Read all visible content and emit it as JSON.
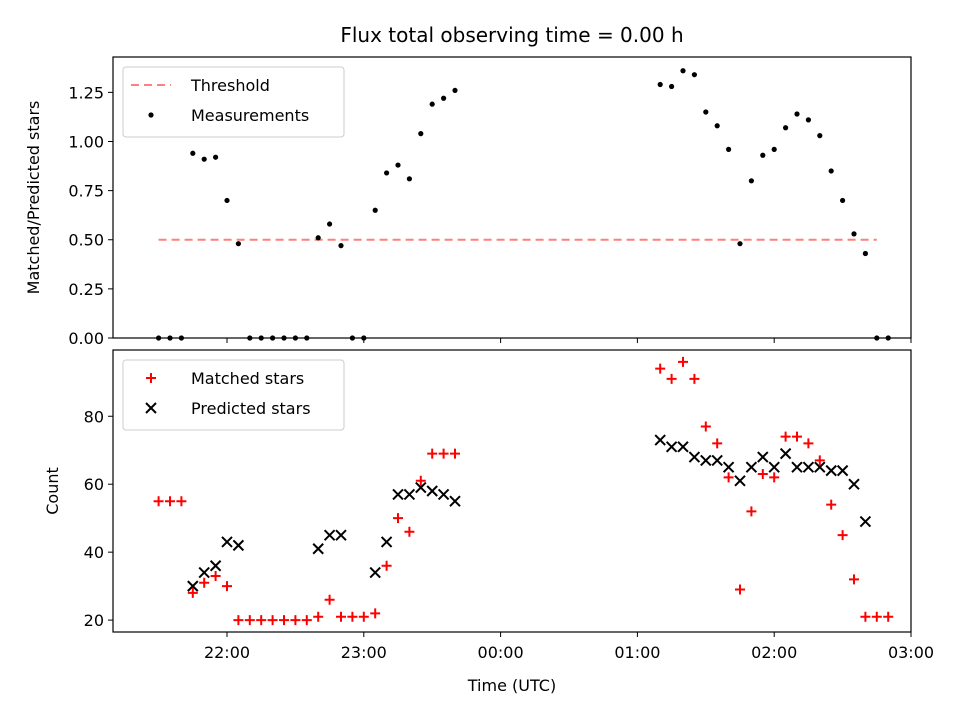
{
  "figure": {
    "title": "Flux total observing time = 0.00 h",
    "xlabel": "Time (UTC)"
  },
  "chart_data": [
    {
      "type": "scatter",
      "ylabel": "Matched/Predicted stars",
      "xlim": [
        "21:10",
        "03:00"
      ],
      "ylim": [
        0,
        1.43
      ],
      "x_ticks": [
        "22:00",
        "23:00",
        "00:00",
        "01:00",
        "02:00",
        "03:00"
      ],
      "y_ticks": [
        "0.00",
        "0.25",
        "0.50",
        "0.75",
        "1.00",
        "1.25"
      ],
      "legend_position": "upper left",
      "threshold": {
        "name": "Threshold",
        "value": 0.5,
        "x_range": [
          "21:30",
          "02:45"
        ],
        "color": "#ff7f7f",
        "style": "dashed"
      },
      "series": [
        {
          "name": "Measurements",
          "marker": "dot",
          "color": "#000000",
          "points": [
            [
              "21:30",
              0.0
            ],
            [
              "21:35",
              0.0
            ],
            [
              "21:40",
              0.0
            ],
            [
              "21:45",
              0.94
            ],
            [
              "21:50",
              0.91
            ],
            [
              "21:55",
              0.92
            ],
            [
              "22:00",
              0.7
            ],
            [
              "22:05",
              0.48
            ],
            [
              "22:10",
              0.0
            ],
            [
              "22:15",
              0.0
            ],
            [
              "22:20",
              0.0
            ],
            [
              "22:25",
              0.0
            ],
            [
              "22:30",
              0.0
            ],
            [
              "22:35",
              0.0
            ],
            [
              "22:40",
              0.51
            ],
            [
              "22:45",
              0.58
            ],
            [
              "22:50",
              0.47
            ],
            [
              "22:55",
              0.0
            ],
            [
              "23:00",
              0.0
            ],
            [
              "23:05",
              0.65
            ],
            [
              "23:10",
              0.84
            ],
            [
              "23:15",
              0.88
            ],
            [
              "23:20",
              0.81
            ],
            [
              "23:25",
              1.04
            ],
            [
              "23:30",
              1.19
            ],
            [
              "23:35",
              1.22
            ],
            [
              "23:40",
              1.26
            ],
            [
              "01:10",
              1.29
            ],
            [
              "01:15",
              1.28
            ],
            [
              "01:20",
              1.36
            ],
            [
              "01:25",
              1.34
            ],
            [
              "01:30",
              1.15
            ],
            [
              "01:35",
              1.08
            ],
            [
              "01:40",
              0.96
            ],
            [
              "01:45",
              0.48
            ],
            [
              "01:50",
              0.8
            ],
            [
              "01:55",
              0.93
            ],
            [
              "02:00",
              0.96
            ],
            [
              "02:05",
              1.07
            ],
            [
              "02:10",
              1.14
            ],
            [
              "02:15",
              1.11
            ],
            [
              "02:20",
              1.03
            ],
            [
              "02:25",
              0.85
            ],
            [
              "02:30",
              0.7
            ],
            [
              "02:35",
              0.53
            ],
            [
              "02:40",
              0.43
            ],
            [
              "02:45",
              0.0
            ],
            [
              "02:50",
              0.0
            ]
          ]
        }
      ]
    },
    {
      "type": "scatter",
      "ylabel": "Count",
      "xlabel": "Time (UTC)",
      "xlim": [
        "21:10",
        "03:00"
      ],
      "ylim": [
        16.5,
        99.5
      ],
      "x_ticks": [
        "22:00",
        "23:00",
        "00:00",
        "01:00",
        "02:00",
        "03:00"
      ],
      "y_ticks": [
        "20",
        "40",
        "60",
        "80"
      ],
      "legend_position": "upper left",
      "series": [
        {
          "name": "Matched stars",
          "marker": "plus",
          "color": "#ff0000",
          "points": [
            [
              "21:30",
              55
            ],
            [
              "21:35",
              55
            ],
            [
              "21:40",
              55
            ],
            [
              "21:45",
              28
            ],
            [
              "21:50",
              31
            ],
            [
              "21:55",
              33
            ],
            [
              "22:00",
              30
            ],
            [
              "22:05",
              20
            ],
            [
              "22:10",
              20
            ],
            [
              "22:15",
              20
            ],
            [
              "22:20",
              20
            ],
            [
              "22:25",
              20
            ],
            [
              "22:30",
              20
            ],
            [
              "22:35",
              20
            ],
            [
              "22:40",
              21
            ],
            [
              "22:45",
              26
            ],
            [
              "22:50",
              21
            ],
            [
              "22:55",
              21
            ],
            [
              "23:00",
              21
            ],
            [
              "23:05",
              22
            ],
            [
              "23:10",
              36
            ],
            [
              "23:15",
              50
            ],
            [
              "23:20",
              46
            ],
            [
              "23:25",
              61
            ],
            [
              "23:30",
              69
            ],
            [
              "23:35",
              69
            ],
            [
              "23:40",
              69
            ],
            [
              "01:10",
              94
            ],
            [
              "01:15",
              91
            ],
            [
              "01:20",
              96
            ],
            [
              "01:25",
              91
            ],
            [
              "01:30",
              77
            ],
            [
              "01:35",
              72
            ],
            [
              "01:40",
              62
            ],
            [
              "01:45",
              29
            ],
            [
              "01:50",
              52
            ],
            [
              "01:55",
              63
            ],
            [
              "02:00",
              62
            ],
            [
              "02:05",
              74
            ],
            [
              "02:10",
              74
            ],
            [
              "02:15",
              72
            ],
            [
              "02:20",
              67
            ],
            [
              "02:25",
              54
            ],
            [
              "02:30",
              45
            ],
            [
              "02:35",
              32
            ],
            [
              "02:40",
              21
            ],
            [
              "02:45",
              21
            ],
            [
              "02:50",
              21
            ]
          ]
        },
        {
          "name": "Predicted stars",
          "marker": "x",
          "color": "#000000",
          "points": [
            [
              "21:45",
              30
            ],
            [
              "21:50",
              34
            ],
            [
              "21:55",
              36
            ],
            [
              "22:00",
              43
            ],
            [
              "22:05",
              42
            ],
            [
              "22:40",
              41
            ],
            [
              "22:45",
              45
            ],
            [
              "22:50",
              45
            ],
            [
              "23:05",
              34
            ],
            [
              "23:10",
              43
            ],
            [
              "23:15",
              57
            ],
            [
              "23:20",
              57
            ],
            [
              "23:25",
              59
            ],
            [
              "23:30",
              58
            ],
            [
              "23:35",
              57
            ],
            [
              "23:40",
              55
            ],
            [
              "01:10",
              73
            ],
            [
              "01:15",
              71
            ],
            [
              "01:20",
              71
            ],
            [
              "01:25",
              68
            ],
            [
              "01:30",
              67
            ],
            [
              "01:35",
              67
            ],
            [
              "01:40",
              65
            ],
            [
              "01:45",
              61
            ],
            [
              "01:50",
              65
            ],
            [
              "01:55",
              68
            ],
            [
              "02:00",
              65
            ],
            [
              "02:05",
              69
            ],
            [
              "02:10",
              65
            ],
            [
              "02:15",
              65
            ],
            [
              "02:20",
              65
            ],
            [
              "02:25",
              64
            ],
            [
              "02:30",
              64
            ],
            [
              "02:35",
              60
            ],
            [
              "02:40",
              49
            ]
          ]
        }
      ]
    }
  ]
}
